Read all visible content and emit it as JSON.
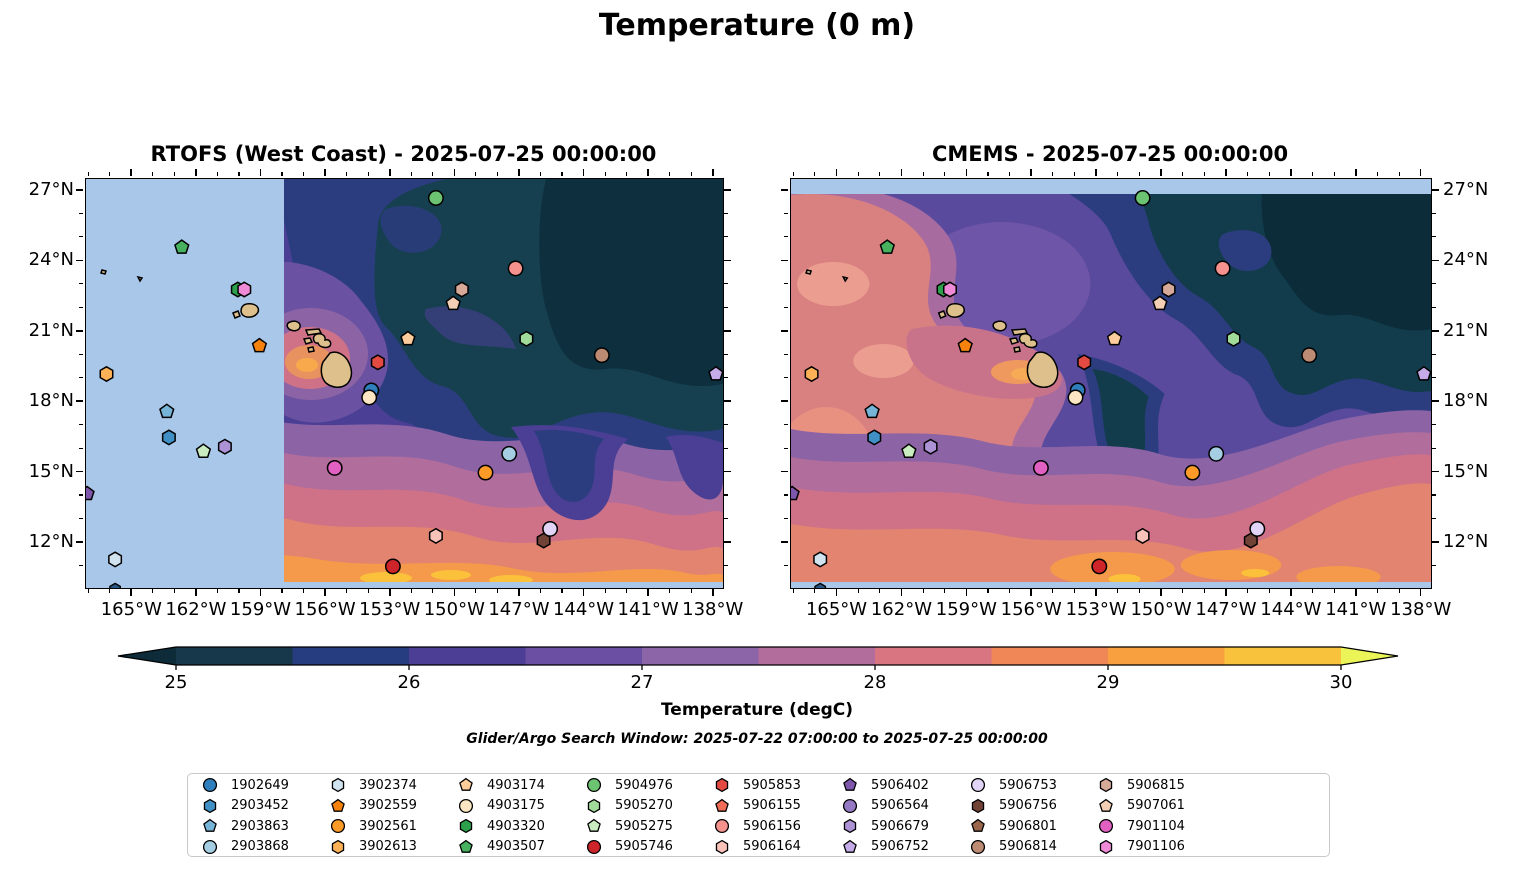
{
  "title": "Temperature (0 m)",
  "panels": [
    {
      "title": "RTOFS (West Coast) - 2025-07-25 00:00:00"
    },
    {
      "title": "CMEMS - 2025-07-25 00:00:00"
    }
  ],
  "axes": {
    "lon_ticks": [
      {
        "label": "165°W",
        "deg_w": 165
      },
      {
        "label": "162°W",
        "deg_w": 162
      },
      {
        "label": "159°W",
        "deg_w": 159
      },
      {
        "label": "156°W",
        "deg_w": 156
      },
      {
        "label": "153°W",
        "deg_w": 153
      },
      {
        "label": "150°W",
        "deg_w": 150
      },
      {
        "label": "147°W",
        "deg_w": 147
      },
      {
        "label": "144°W",
        "deg_w": 144
      },
      {
        "label": "141°W",
        "deg_w": 141
      },
      {
        "label": "138°W",
        "deg_w": 138
      }
    ],
    "lat_ticks": [
      {
        "label": "27°N",
        "deg_n": 27
      },
      {
        "label": "24°N",
        "deg_n": 24
      },
      {
        "label": "21°N",
        "deg_n": 21
      },
      {
        "label": "18°N",
        "deg_n": 18
      },
      {
        "label": "15°N",
        "deg_n": 15
      },
      {
        "label": "12°N",
        "deg_n": 12
      }
    ]
  },
  "colorbar": {
    "label": "Temperature (degC)",
    "ticks": [
      "25",
      "26",
      "27",
      "28",
      "29",
      "30"
    ],
    "segment_colors": [
      "#16384a",
      "#263d80",
      "#4c3d95",
      "#6b4fa2",
      "#8c64a8",
      "#b36d9c",
      "#d97580",
      "#ef8756",
      "#f89f3f",
      "#f8c23c"
    ],
    "under_arrow_color": "#0d2b39",
    "over_arrow_color": "#ecf558"
  },
  "search_window": "Glider/Argo Search Window: 2025-07-22 07:00:00 to 2025-07-25 00:00:00",
  "legend": [
    {
      "id": "1902649",
      "shape": "circle",
      "color": "#2f7fbd"
    },
    {
      "id": "2903452",
      "shape": "hexagon",
      "color": "#4090c5"
    },
    {
      "id": "2903863",
      "shape": "pentagon",
      "color": "#76b4d8"
    },
    {
      "id": "2903868",
      "shape": "circle",
      "color": "#a5cee3"
    },
    {
      "id": "3902374",
      "shape": "hexagon",
      "color": "#d2e3f0"
    },
    {
      "id": "3902559",
      "shape": "pentagon",
      "color": "#f5820d"
    },
    {
      "id": "3902561",
      "shape": "circle",
      "color": "#fd9a28"
    },
    {
      "id": "3902613",
      "shape": "hexagon",
      "color": "#fdb157"
    },
    {
      "id": "4903174",
      "shape": "pentagon",
      "color": "#fdcc9c"
    },
    {
      "id": "4903175",
      "shape": "circle",
      "color": "#fbe5c2"
    },
    {
      "id": "4903320",
      "shape": "hexagon",
      "color": "#2ca04b"
    },
    {
      "id": "4903507",
      "shape": "pentagon",
      "color": "#47b15f"
    },
    {
      "id": "5904976",
      "shape": "circle",
      "color": "#6cc472"
    },
    {
      "id": "5905270",
      "shape": "hexagon",
      "color": "#a0db9a"
    },
    {
      "id": "5905275",
      "shape": "pentagon",
      "color": "#c9ecc0"
    },
    {
      "id": "5905746",
      "shape": "circle",
      "color": "#cd2529"
    },
    {
      "id": "5905853",
      "shape": "hexagon",
      "color": "#e34a41"
    },
    {
      "id": "5906155",
      "shape": "pentagon",
      "color": "#ef6a57"
    },
    {
      "id": "5906156",
      "shape": "circle",
      "color": "#f5928e"
    },
    {
      "id": "5906164",
      "shape": "hexagon",
      "color": "#fac3b9"
    },
    {
      "id": "5906402",
      "shape": "pentagon",
      "color": "#7e57ad"
    },
    {
      "id": "5906564",
      "shape": "circle",
      "color": "#9679c5"
    },
    {
      "id": "5906679",
      "shape": "hexagon",
      "color": "#ad92d6"
    },
    {
      "id": "5906752",
      "shape": "pentagon",
      "color": "#c6abe9"
    },
    {
      "id": "5906753",
      "shape": "circle",
      "color": "#e2d4f6"
    },
    {
      "id": "5906756",
      "shape": "hexagon",
      "color": "#714236"
    },
    {
      "id": "5906801",
      "shape": "pentagon",
      "color": "#9a674d"
    },
    {
      "id": "5906814",
      "shape": "circle",
      "color": "#bd8b74"
    },
    {
      "id": "5906815",
      "shape": "hexagon",
      "color": "#d7a999"
    },
    {
      "id": "5907061",
      "shape": "pentagon",
      "color": "#f4cfb5"
    },
    {
      "id": "7901104",
      "shape": "circle",
      "color": "#e160c1"
    },
    {
      "id": "7901106",
      "shape": "hexagon",
      "color": "#ee8ad6"
    }
  ],
  "chart_data": {
    "type": "heatmap",
    "subtype": "geographic filled-contour temperature maps with float positions",
    "title": "Temperature (0 m)",
    "panel_titles": [
      "RTOFS (West Coast) - 2025-07-25 00:00:00",
      "CMEMS - 2025-07-25 00:00:00"
    ],
    "colorbar": {
      "label": "Temperature (degC)",
      "ticks": [
        25,
        26,
        27,
        28,
        29,
        30
      ],
      "range": [
        25,
        30
      ],
      "extend": "both"
    },
    "lon_range_deg_w": [
      167.1,
      137.5
    ],
    "lat_range_deg_n": [
      10.1,
      27.5
    ],
    "rtofs_no_data_west_of_deg_w": 157.9,
    "cmems_no_data_north_of_deg_n": 26.9,
    "annotation": "Glider/Argo Search Window: 2025-07-22 07:00:00 to 2025-07-25 00:00:00",
    "floats": [
      {
        "id": "4903320",
        "lon_w": 160.1,
        "lat_n": 22.8
      },
      {
        "id": "7901106",
        "lon_w": 159.8,
        "lat_n": 22.8
      },
      {
        "id": "4903507",
        "lon_w": 162.7,
        "lat_n": 24.6
      },
      {
        "id": "5904976",
        "lon_w": 150.9,
        "lat_n": 26.7
      },
      {
        "id": "5906156",
        "lon_w": 147.2,
        "lat_n": 23.7
      },
      {
        "id": "5906815",
        "lon_w": 149.7,
        "lat_n": 22.8
      },
      {
        "id": "5907061",
        "lon_w": 150.1,
        "lat_n": 22.2
      },
      {
        "id": "3902559",
        "lon_w": 159.1,
        "lat_n": 20.4
      },
      {
        "id": "3902613",
        "lon_w": 166.2,
        "lat_n": 19.2
      },
      {
        "id": "4903174",
        "lon_w": 152.2,
        "lat_n": 20.7
      },
      {
        "id": "5905853",
        "lon_w": 153.6,
        "lat_n": 19.7
      },
      {
        "id": "1902649",
        "lon_w": 153.9,
        "lat_n": 18.5
      },
      {
        "id": "4903175",
        "lon_w": 154.0,
        "lat_n": 18.2
      },
      {
        "id": "5905270",
        "lon_w": 146.7,
        "lat_n": 20.7
      },
      {
        "id": "5906814",
        "lon_w": 143.2,
        "lat_n": 20.0
      },
      {
        "id": "5906752",
        "lon_w": 137.9,
        "lat_n": 19.2
      },
      {
        "id": "2903863",
        "lon_w": 163.4,
        "lat_n": 17.6
      },
      {
        "id": "2903452",
        "lon_w": 163.3,
        "lat_n": 16.5
      },
      {
        "id": "5905275",
        "lon_w": 161.7,
        "lat_n": 15.9
      },
      {
        "id": "5906679",
        "lon_w": 160.7,
        "lat_n": 16.1
      },
      {
        "id": "5906402",
        "lon_w": 167.1,
        "lat_n": 14.1
      },
      {
        "id": "7901104",
        "lon_w": 155.6,
        "lat_n": 15.2
      },
      {
        "id": "2903868",
        "lon_w": 147.5,
        "lat_n": 15.8
      },
      {
        "id": "3902561",
        "lon_w": 148.6,
        "lat_n": 15.0
      },
      {
        "id": "5906164",
        "lon_w": 150.9,
        "lat_n": 12.3
      },
      {
        "id": "5906756",
        "lon_w": 145.9,
        "lat_n": 12.1
      },
      {
        "id": "5906753",
        "lon_w": 145.6,
        "lat_n": 12.6
      },
      {
        "id": "5905746",
        "lon_w": 152.9,
        "lat_n": 11.0
      },
      {
        "id": "3902374",
        "lon_w": 165.8,
        "lat_n": 11.3
      }
    ],
    "floats_in_legend_only": [
      "5906155",
      "5906564",
      "5906801"
    ]
  },
  "map_colors": {
    "no_data": "#a9c7e8",
    "land": "#ddc08c",
    "cold_darkest": "#0d2f3e",
    "cold_teal": "#16404f",
    "navy": "#2c3d7f",
    "indigo": "#4a3f95",
    "purple": "#6b51a1",
    "mauve": "#8c64a6",
    "pink_purple": "#b16d9b",
    "pink": "#cf7287",
    "salmon": "#e28470",
    "orange": "#f49a4a",
    "yellow": "#fbc13b"
  },
  "partial_marker": {
    "shape": "hexagon",
    "color": "#2a5784",
    "lon_w": 165.8,
    "lat_n": 10.15
  }
}
